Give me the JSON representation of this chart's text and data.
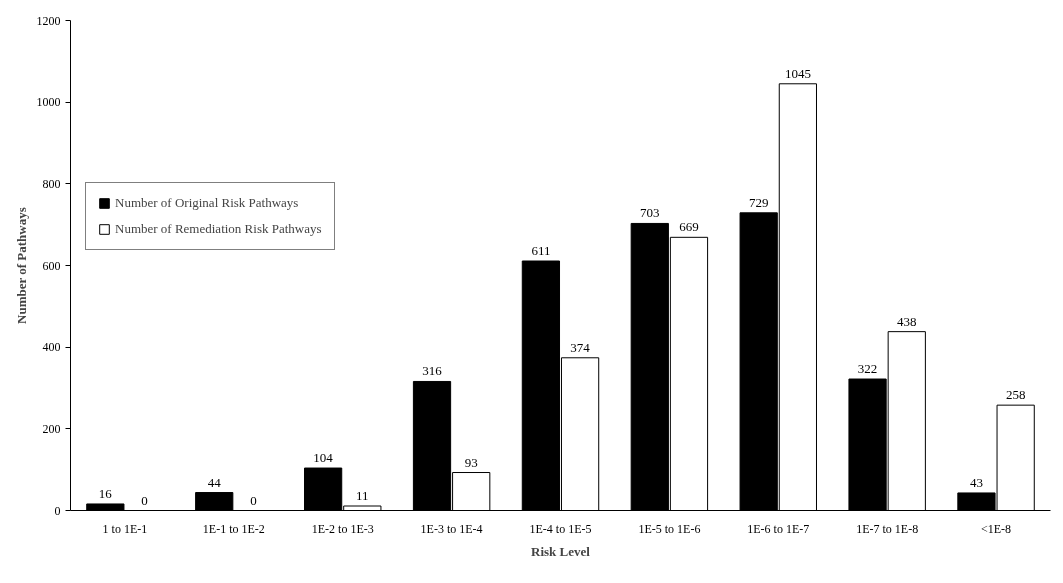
{
  "chart_data": {
    "type": "bar",
    "xlabel": "Risk Level",
    "ylabel": "Number of Pathways",
    "categories": [
      "1 to 1E-1",
      "1E-1 to 1E-2",
      "1E-2 to 1E-3",
      "1E-3 to 1E-4",
      "1E-4 to 1E-5",
      "1E-5 to 1E-6",
      "1E-6 to 1E-7",
      "1E-7 to 1E-8",
      "<1E-8"
    ],
    "series": [
      {
        "name": "Number of Original Risk Pathways",
        "color": "#000000",
        "values": [
          16,
          44,
          104,
          316,
          611,
          703,
          729,
          322,
          43
        ]
      },
      {
        "name": "Number of Remediation Risk Pathways",
        "color": "#ffffff",
        "values": [
          0,
          0,
          11,
          93,
          374,
          669,
          1045,
          438,
          258
        ]
      }
    ],
    "ylim": [
      0,
      1200
    ],
    "yticks": [
      0,
      200,
      400,
      600,
      800,
      1000,
      1200
    ],
    "grid": false,
    "legend": "top left",
    "data_labels": true
  }
}
